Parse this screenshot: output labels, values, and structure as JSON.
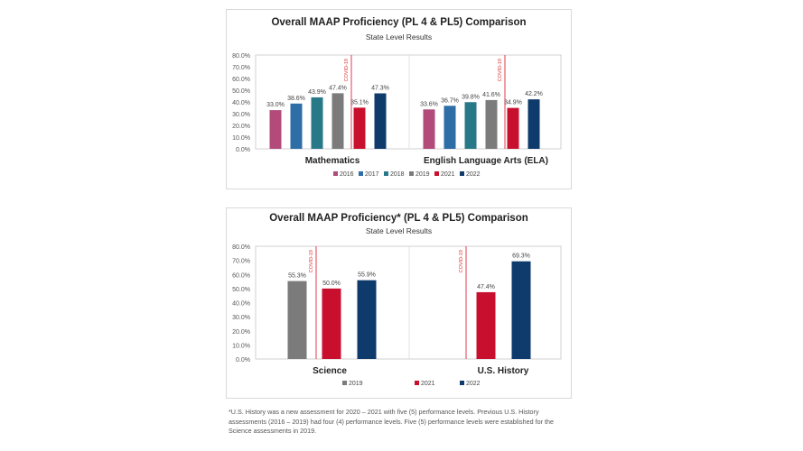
{
  "chart_data": [
    {
      "type": "bar",
      "title": "Overall MAAP Proficiency (PL 4 & PL5) Comparison",
      "subtitle": "State Level Results",
      "categories": [
        "Mathematics",
        "English Language Arts (ELA)"
      ],
      "series": [
        {
          "name": "2016",
          "color": "#b24a7a",
          "values": [
            33.0,
            33.6
          ],
          "labels": [
            "33.0%",
            "33.6%"
          ]
        },
        {
          "name": "2017",
          "color": "#2e6ea6",
          "values": [
            38.6,
            36.7
          ],
          "labels": [
            "38.6%",
            "36.7%"
          ]
        },
        {
          "name": "2018",
          "color": "#287988",
          "values": [
            43.9,
            39.8
          ],
          "labels": [
            "43.9%",
            "39.8%"
          ]
        },
        {
          "name": "2019",
          "color": "#7b7b7b",
          "values": [
            47.4,
            41.6
          ],
          "labels": [
            "47.4%",
            "41.6%"
          ]
        },
        {
          "name": "2021",
          "color": "#c8102e",
          "values": [
            35.1,
            34.9
          ],
          "labels": [
            "35.1%",
            "34.9%"
          ]
        },
        {
          "name": "2022",
          "color": "#0e3a6c",
          "values": [
            47.3,
            42.2
          ],
          "labels": [
            "47.3%",
            "42.2%"
          ]
        }
      ],
      "annotation": "COVID-19",
      "ylim": [
        0,
        80
      ],
      "yticks": [
        "0.0%",
        "10.0%",
        "20.0%",
        "30.0%",
        "40.0%",
        "50.0%",
        "60.0%",
        "70.0%",
        "80.0%"
      ],
      "legend": "bottom",
      "grid": false
    },
    {
      "type": "bar",
      "title": "Overall MAAP Proficiency* (PL 4 & PL5) Comparison",
      "subtitle": "State Level Results",
      "categories": [
        "Science",
        "U.S. History"
      ],
      "series": [
        {
          "name": "2019",
          "color": "#7b7b7b",
          "values": [
            55.3,
            null
          ],
          "labels": [
            "55.3%",
            ""
          ]
        },
        {
          "name": "2021",
          "color": "#c8102e",
          "values": [
            50.0,
            47.4
          ],
          "labels": [
            "50.0%",
            "47.4%"
          ]
        },
        {
          "name": "2022",
          "color": "#0e3a6c",
          "values": [
            55.9,
            69.3
          ],
          "labels": [
            "55.9%",
            "69.3%"
          ]
        }
      ],
      "annotation": "COVID-19",
      "ylim": [
        0,
        80
      ],
      "yticks": [
        "0.0%",
        "10.0%",
        "20.0%",
        "30.0%",
        "40.0%",
        "50.0%",
        "60.0%",
        "70.0%",
        "80.0%"
      ],
      "legend": "bottom",
      "grid": false
    }
  ],
  "footnote": "*U.S. History was a new assessment for 2020 – 2021 with five (5) performance levels. Previous U.S. History assessments (2016 – 2019) had four (4) performance levels. Five (5) performance levels were established for the Science assessments in 2019."
}
